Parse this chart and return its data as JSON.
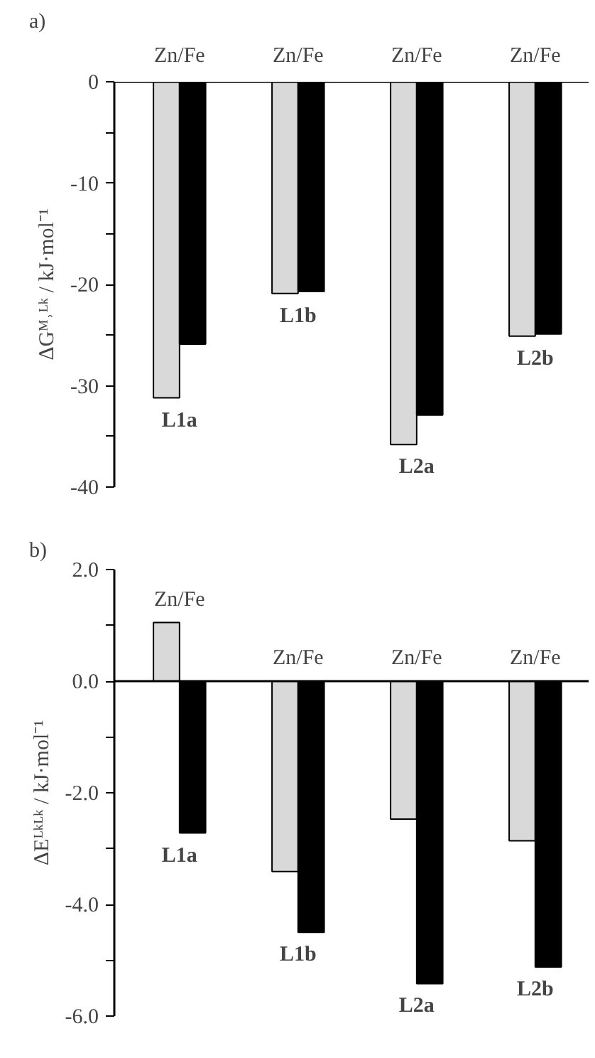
{
  "chart_data": [
    {
      "type": "bar",
      "title": "a)",
      "ylabel": "ΔGᴹ˒ᴸᵏ / kJ·mol⁻¹",
      "categories": [
        "L1a",
        "L1b",
        "L2a",
        "L2b"
      ],
      "series": [
        {
          "color": "#d9d9d9",
          "values": [
            -31.2,
            -20.9,
            -35.8,
            -25.1
          ]
        },
        {
          "color": "#000000",
          "values": [
            -25.9,
            -20.7,
            -32.9,
            -24.9
          ]
        }
      ],
      "ylim": [
        -40,
        0
      ],
      "yticks": [
        -40,
        {
          "value": -35,
          "label": null
        },
        -30,
        {
          "value": -25,
          "label": null
        },
        -20,
        {
          "value": -15,
          "label": null
        },
        -10,
        {
          "value": -5,
          "label": null
        },
        0
      ],
      "annotations": [
        "Zn/Fe",
        "Zn/Fe",
        "Zn/Fe",
        "Zn/Fe"
      ],
      "grid": false,
      "ref_lines": [
        {
          "axis": "y",
          "value": 0,
          "color": "#000000"
        }
      ]
    },
    {
      "type": "bar",
      "title": "b)",
      "ylabel": "ΔEᴸᵏᴸᵏ / kJ·mol⁻¹",
      "categories": [
        "L1a",
        "L1b",
        "L2a",
        "L2b"
      ],
      "series": [
        {
          "color": "#d9d9d9",
          "values": [
            1.05,
            -3.41,
            -2.47,
            -2.86
          ]
        },
        {
          "color": "#000000",
          "values": [
            -2.72,
            -4.5,
            -5.42,
            -5.12
          ]
        }
      ],
      "ylim": [
        -6,
        2
      ],
      "yticks": [
        {
          "value": -6,
          "label": "-6.0"
        },
        {
          "value": -5,
          "label": null
        },
        {
          "value": -4,
          "label": "-4.0"
        },
        {
          "value": -3,
          "label": null
        },
        {
          "value": -2,
          "label": "-2.0"
        },
        {
          "value": -1,
          "label": null
        },
        {
          "value": 0,
          "label": "0.0"
        },
        {
          "value": 1,
          "label": null
        },
        {
          "value": 2,
          "label": "2.0"
        }
      ],
      "annotations": [
        "Zn/Fe",
        "Zn/Fe",
        "Zn/Fe",
        "Zn/Fe"
      ],
      "grid": false,
      "ref_lines": [
        {
          "axis": "y",
          "value": 0,
          "color": "#000000"
        }
      ]
    }
  ]
}
